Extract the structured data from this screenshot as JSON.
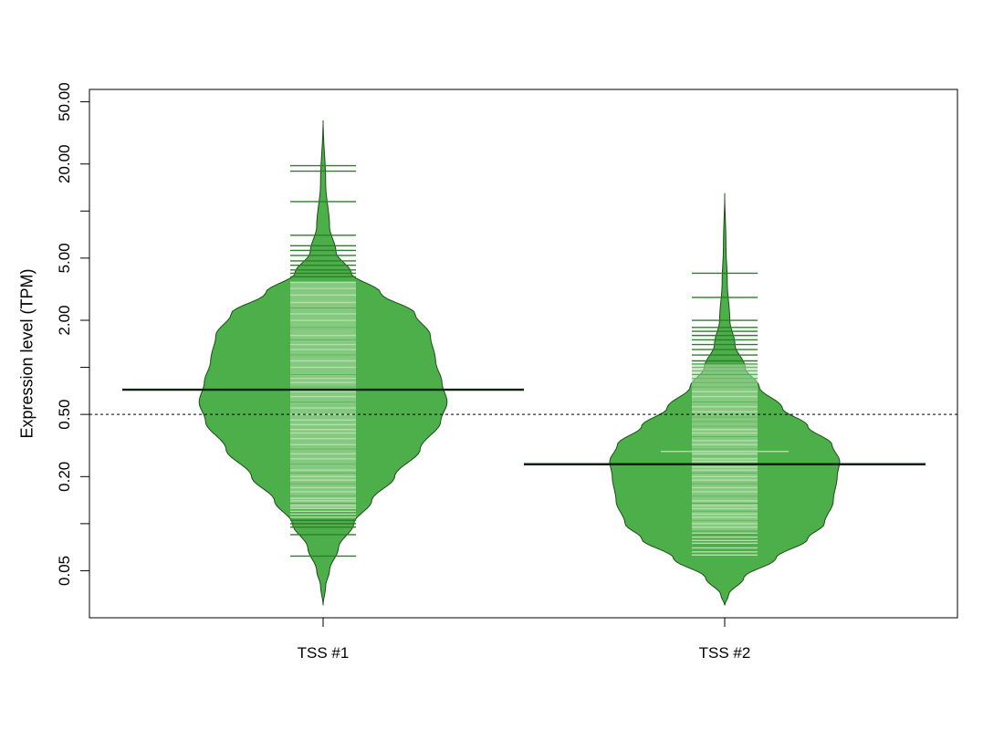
{
  "chart_data": {
    "type": "beanplot",
    "title": "",
    "xlabel": "",
    "ylabel": "Expression level (TPM)",
    "y_scale": "log10",
    "ylim": [
      0.025,
      60
    ],
    "y_ticks": [
      0.05,
      0.1,
      0.2,
      0.5,
      1,
      2,
      5,
      10,
      20,
      50
    ],
    "y_tick_labels": [
      "0.05",
      "",
      "0.20",
      "0.50",
      "",
      "2.00",
      "5.00",
      "",
      "20.00",
      "50.00"
    ],
    "categories": [
      "TSS #1",
      "TSS #2"
    ],
    "overall_reference_line": 0.5,
    "series": [
      {
        "name": "TSS #1",
        "mean": 0.72,
        "range": [
          0.03,
          38
        ],
        "density_profile": [
          [
            0.03,
            0.0
          ],
          [
            0.04,
            0.02
          ],
          [
            0.05,
            0.05
          ],
          [
            0.07,
            0.12
          ],
          [
            0.1,
            0.24
          ],
          [
            0.14,
            0.38
          ],
          [
            0.2,
            0.56
          ],
          [
            0.3,
            0.76
          ],
          [
            0.45,
            0.92
          ],
          [
            0.6,
            0.97
          ],
          [
            0.8,
            0.93
          ],
          [
            1.1,
            0.88
          ],
          [
            1.6,
            0.84
          ],
          [
            2.2,
            0.72
          ],
          [
            3.0,
            0.45
          ],
          [
            4.0,
            0.22
          ],
          [
            5.5,
            0.1
          ],
          [
            8.0,
            0.05
          ],
          [
            15,
            0.02
          ],
          [
            38,
            0.0
          ]
        ],
        "sample_values": [
          0.062,
          0.085,
          0.095,
          0.1,
          0.105,
          0.11,
          0.115,
          0.12,
          0.125,
          0.13,
          0.135,
          0.14,
          0.145,
          0.15,
          0.16,
          0.17,
          0.18,
          0.19,
          0.2,
          0.21,
          0.22,
          0.24,
          0.26,
          0.28,
          0.3,
          0.32,
          0.35,
          0.38,
          0.4,
          0.43,
          0.46,
          0.5,
          0.55,
          0.6,
          0.65,
          0.7,
          0.75,
          0.8,
          0.85,
          0.9,
          1.0,
          1.1,
          1.2,
          1.3,
          1.4,
          1.5,
          1.6,
          1.8,
          2.0,
          2.2,
          2.4,
          2.6,
          2.9,
          3.2,
          3.5,
          3.8,
          4.0,
          4.2,
          4.5,
          4.8,
          5.2,
          5.6,
          6.0,
          7.0,
          11.5,
          18.0,
          19.5
        ]
      },
      {
        "name": "TSS #2",
        "mean": 0.24,
        "range": [
          0.03,
          13
        ],
        "density_profile": [
          [
            0.03,
            0.0
          ],
          [
            0.035,
            0.03
          ],
          [
            0.045,
            0.15
          ],
          [
            0.06,
            0.4
          ],
          [
            0.08,
            0.65
          ],
          [
            0.1,
            0.78
          ],
          [
            0.14,
            0.85
          ],
          [
            0.2,
            0.88
          ],
          [
            0.25,
            0.9
          ],
          [
            0.32,
            0.84
          ],
          [
            0.42,
            0.65
          ],
          [
            0.55,
            0.45
          ],
          [
            0.75,
            0.27
          ],
          [
            1.0,
            0.16
          ],
          [
            1.4,
            0.08
          ],
          [
            2.0,
            0.04
          ],
          [
            3.5,
            0.02
          ],
          [
            6.0,
            0.01
          ],
          [
            13,
            0.0
          ]
        ],
        "sample_values": [
          0.063,
          0.066,
          0.07,
          0.075,
          0.078,
          0.082,
          0.087,
          0.09,
          0.095,
          0.1,
          0.105,
          0.11,
          0.115,
          0.12,
          0.125,
          0.13,
          0.135,
          0.14,
          0.15,
          0.16,
          0.17,
          0.18,
          0.19,
          0.2,
          0.21,
          0.22,
          0.23,
          0.24,
          0.25,
          0.26,
          0.27,
          0.28,
          0.3,
          0.32,
          0.34,
          0.36,
          0.38,
          0.4,
          0.42,
          0.45,
          0.48,
          0.52,
          0.56,
          0.6,
          0.65,
          0.7,
          0.75,
          0.8,
          0.85,
          0.9,
          0.95,
          1.0,
          1.05,
          1.1,
          1.2,
          1.3,
          1.4,
          1.5,
          1.6,
          1.7,
          1.8,
          2.0,
          2.8,
          4.0
        ],
        "highlight_value": 0.29
      }
    ],
    "colors": {
      "bean_fill": "#4daf4a",
      "bean_stroke": "#1a4d18",
      "line_light": "#b2dfab",
      "mean_line": "#0b2410",
      "axis": "#000000"
    },
    "grid": false,
    "legend": "none"
  }
}
